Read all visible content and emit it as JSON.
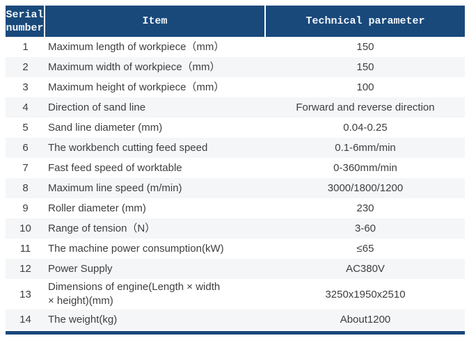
{
  "table": {
    "headers": {
      "serial": "Serial\nnumber",
      "item": "Item",
      "param": "Technical parameter"
    },
    "rows": [
      {
        "serial": "1",
        "item": "Maximum length of workpiece（mm）",
        "param": "150"
      },
      {
        "serial": "2",
        "item": "Maximum width of workpiece（mm）",
        "param": "150"
      },
      {
        "serial": "3",
        "item": "Maximum height of workpiece（mm）",
        "param": "100"
      },
      {
        "serial": "4",
        "item": "Direction of sand line",
        "param": "Forward and reverse direction"
      },
      {
        "serial": "5",
        "item": "Sand line diameter (mm)",
        "param": "0.04-0.25"
      },
      {
        "serial": "6",
        "item": "The workbench cutting feed speed",
        "param": "0.1-6mm/min"
      },
      {
        "serial": "7",
        "item": "Fast feed speed of worktable",
        "param": "0-360mm/min"
      },
      {
        "serial": "8",
        "item": "Maximum line speed (m/min)",
        "param": "3000/1800/1200"
      },
      {
        "serial": "9",
        "item": "Roller diameter (mm)",
        "param": "230"
      },
      {
        "serial": "10",
        "item": "Range of tension（N）",
        "param": "3-60"
      },
      {
        "serial": "11",
        "item": "The machine power consumption(kW)",
        "param": "≤65"
      },
      {
        "serial": "12",
        "item": "Power Supply",
        "param": "AC380V"
      },
      {
        "serial": "13",
        "item": "Dimensions of engine(Length × width\n× height)(mm)",
        "param": "3250x1950x2510"
      },
      {
        "serial": "14",
        "item": "The weight(kg)",
        "param": "About1200"
      }
    ],
    "colors": {
      "header_background": "#19497b",
      "header_text": "#f2f6fa",
      "stripe_background": "#f5f6f7",
      "body_text": "#3d3e40",
      "bottom_border": "#19497b"
    }
  }
}
